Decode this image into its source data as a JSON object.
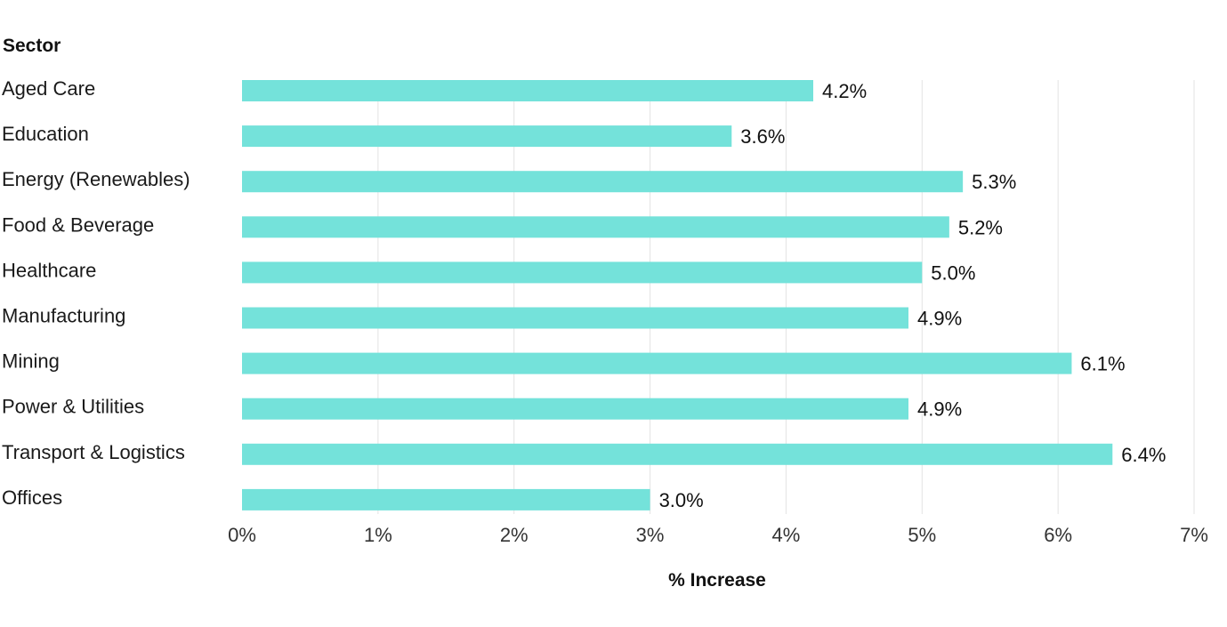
{
  "chart_data": {
    "type": "bar",
    "orientation": "horizontal",
    "categories": [
      "Aged Care",
      "Education",
      "Energy (Renewables)",
      "Food & Beverage",
      "Healthcare",
      "Manufacturing",
      "Mining",
      "Power & Utilities",
      "Transport & Logistics",
      "Offices"
    ],
    "values": [
      4.2,
      3.6,
      5.3,
      5.2,
      5.0,
      4.9,
      6.1,
      4.9,
      6.4,
      3.0
    ],
    "data_labels": [
      "4.2%",
      "3.6%",
      "5.3%",
      "5.2%",
      "5.0%",
      "4.9%",
      "6.1%",
      "4.9%",
      "6.4%",
      "3.0%"
    ],
    "xlabel": "% Increase",
    "ylabel": "Sector",
    "xlim": [
      0,
      7
    ],
    "x_ticks": [
      0,
      1,
      2,
      3,
      4,
      5,
      6,
      7
    ],
    "x_tick_labels": [
      "0%",
      "1%",
      "2%",
      "3%",
      "4%",
      "5%",
      "6%",
      "7%"
    ],
    "grid": "vertical",
    "bar_color": "#74e2da"
  }
}
